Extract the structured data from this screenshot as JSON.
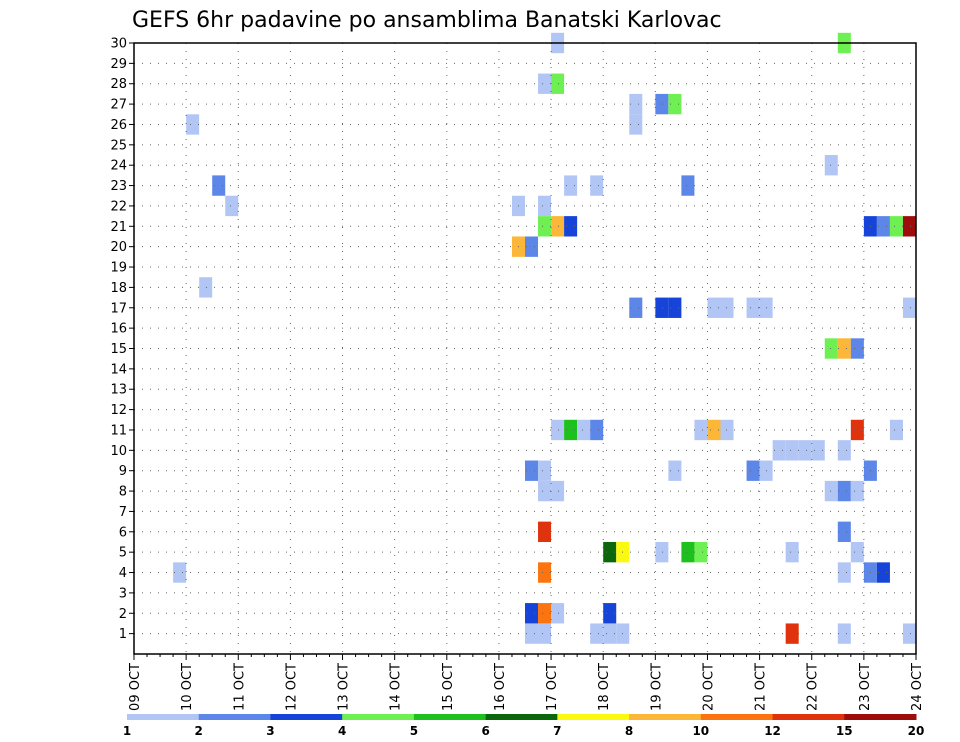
{
  "chart_data": {
    "type": "heatmap",
    "title": "GEFS 6hr padavine po ansamblima Banatski Karlovac",
    "xlabel": "",
    "ylabel": "",
    "x_tick_labels": [
      "09 OCT",
      "10 OCT",
      "11 OCT",
      "12 OCT",
      "13 OCT",
      "14 OCT",
      "15 OCT",
      "16 OCT",
      "17 OCT",
      "18 OCT",
      "19 OCT",
      "20 OCT",
      "21 OCT",
      "22 OCT",
      "23 OCT",
      "24 OCT"
    ],
    "y_tick_labels": [
      "1",
      "2",
      "3",
      "4",
      "5",
      "6",
      "7",
      "8",
      "9",
      "10",
      "11",
      "12",
      "13",
      "14",
      "15",
      "16",
      "17",
      "18",
      "19",
      "20",
      "21",
      "22",
      "23",
      "24",
      "25",
      "26",
      "27",
      "28",
      "29",
      "30"
    ],
    "x_range_days": [
      0,
      15
    ],
    "y_range": [
      0,
      30
    ],
    "x_step_days": 0.25,
    "grid": true,
    "legend_position": "bottom",
    "colorbar": {
      "labels": [
        "1",
        "2",
        "3",
        "4",
        "5",
        "6",
        "7",
        "8",
        "10",
        "12",
        "15",
        "20"
      ],
      "colors": [
        "#b2c6f6",
        "#5c86e8",
        "#1644d8",
        "#6ef052",
        "#1ec01e",
        "#0c660c",
        "#fafa10",
        "#fcb638",
        "#fc7410",
        "#e0320c",
        "#9e0c0c"
      ]
    },
    "cells": [
      {
        "member": 30,
        "day": 8.0,
        "bin": 0
      },
      {
        "member": 30,
        "day": 13.5,
        "bin": 3
      },
      {
        "member": 28,
        "day": 7.75,
        "bin": 0
      },
      {
        "member": 28,
        "day": 8.0,
        "bin": 3
      },
      {
        "member": 27,
        "day": 9.5,
        "bin": 0
      },
      {
        "member": 27,
        "day": 10.0,
        "bin": 1
      },
      {
        "member": 27,
        "day": 10.25,
        "bin": 3
      },
      {
        "member": 26,
        "day": 1.0,
        "bin": 0
      },
      {
        "member": 26,
        "day": 9.5,
        "bin": 0
      },
      {
        "member": 24,
        "day": 13.25,
        "bin": 0
      },
      {
        "member": 23,
        "day": 1.5,
        "bin": 1
      },
      {
        "member": 23,
        "day": 8.25,
        "bin": 0
      },
      {
        "member": 23,
        "day": 8.75,
        "bin": 0
      },
      {
        "member": 23,
        "day": 10.5,
        "bin": 1
      },
      {
        "member": 22,
        "day": 1.75,
        "bin": 0
      },
      {
        "member": 22,
        "day": 7.25,
        "bin": 0
      },
      {
        "member": 22,
        "day": 7.75,
        "bin": 0
      },
      {
        "member": 21,
        "day": 7.75,
        "bin": 3
      },
      {
        "member": 21,
        "day": 8.0,
        "bin": 7
      },
      {
        "member": 21,
        "day": 8.25,
        "bin": 2
      },
      {
        "member": 21,
        "day": 14.0,
        "bin": 2
      },
      {
        "member": 21,
        "day": 14.25,
        "bin": 1
      },
      {
        "member": 21,
        "day": 14.5,
        "bin": 3
      },
      {
        "member": 21,
        "day": 14.75,
        "bin": 10
      },
      {
        "member": 20,
        "day": 7.25,
        "bin": 7
      },
      {
        "member": 20,
        "day": 7.5,
        "bin": 1
      },
      {
        "member": 18,
        "day": 1.25,
        "bin": 0
      },
      {
        "member": 17,
        "day": 9.5,
        "bin": 1
      },
      {
        "member": 17,
        "day": 10.0,
        "bin": 2
      },
      {
        "member": 17,
        "day": 10.25,
        "bin": 2
      },
      {
        "member": 17,
        "day": 11.0,
        "bin": 0
      },
      {
        "member": 17,
        "day": 11.25,
        "bin": 0
      },
      {
        "member": 17,
        "day": 11.75,
        "bin": 0
      },
      {
        "member": 17,
        "day": 12.0,
        "bin": 0
      },
      {
        "member": 17,
        "day": 14.9,
        "bin": 0
      },
      {
        "member": 15,
        "day": 13.25,
        "bin": 3
      },
      {
        "member": 15,
        "day": 13.5,
        "bin": 7
      },
      {
        "member": 15,
        "day": 13.75,
        "bin": 1
      },
      {
        "member": 11,
        "day": 8.0,
        "bin": 0
      },
      {
        "member": 11,
        "day": 8.25,
        "bin": 4
      },
      {
        "member": 11,
        "day": 8.5,
        "bin": 0
      },
      {
        "member": 11,
        "day": 8.75,
        "bin": 1
      },
      {
        "member": 11,
        "day": 10.75,
        "bin": 0
      },
      {
        "member": 11,
        "day": 11.0,
        "bin": 7
      },
      {
        "member": 11,
        "day": 11.25,
        "bin": 0
      },
      {
        "member": 11,
        "day": 13.75,
        "bin": 9
      },
      {
        "member": 11,
        "day": 14.5,
        "bin": 0
      },
      {
        "member": 10,
        "day": 12.25,
        "bin": 0
      },
      {
        "member": 10,
        "day": 12.5,
        "bin": 0
      },
      {
        "member": 10,
        "day": 12.75,
        "bin": 0
      },
      {
        "member": 10,
        "day": 13.0,
        "bin": 0
      },
      {
        "member": 10,
        "day": 13.5,
        "bin": 0
      },
      {
        "member": 9,
        "day": 7.5,
        "bin": 1
      },
      {
        "member": 9,
        "day": 7.75,
        "bin": 0
      },
      {
        "member": 9,
        "day": 10.25,
        "bin": 0
      },
      {
        "member": 9,
        "day": 11.75,
        "bin": 1
      },
      {
        "member": 9,
        "day": 12.0,
        "bin": 0
      },
      {
        "member": 9,
        "day": 14.0,
        "bin": 1
      },
      {
        "member": 8,
        "day": 7.75,
        "bin": 0
      },
      {
        "member": 8,
        "day": 8.0,
        "bin": 0
      },
      {
        "member": 8,
        "day": 13.25,
        "bin": 0
      },
      {
        "member": 8,
        "day": 13.5,
        "bin": 1
      },
      {
        "member": 8,
        "day": 13.75,
        "bin": 0
      },
      {
        "member": 6,
        "day": 7.75,
        "bin": 9
      },
      {
        "member": 6,
        "day": 13.5,
        "bin": 1
      },
      {
        "member": 5,
        "day": 9.0,
        "bin": 5
      },
      {
        "member": 5,
        "day": 9.25,
        "bin": 6
      },
      {
        "member": 5,
        "day": 10.0,
        "bin": 0
      },
      {
        "member": 5,
        "day": 10.5,
        "bin": 4
      },
      {
        "member": 5,
        "day": 10.75,
        "bin": 3
      },
      {
        "member": 5,
        "day": 12.5,
        "bin": 0
      },
      {
        "member": 5,
        "day": 13.75,
        "bin": 0
      },
      {
        "member": 4,
        "day": 0.75,
        "bin": 0
      },
      {
        "member": 4,
        "day": 7.75,
        "bin": 8
      },
      {
        "member": 4,
        "day": 13.5,
        "bin": 0
      },
      {
        "member": 4,
        "day": 14.0,
        "bin": 1
      },
      {
        "member": 4,
        "day": 14.25,
        "bin": 2
      },
      {
        "member": 2,
        "day": 7.5,
        "bin": 2
      },
      {
        "member": 2,
        "day": 7.75,
        "bin": 8
      },
      {
        "member": 2,
        "day": 8.0,
        "bin": 0
      },
      {
        "member": 2,
        "day": 9.0,
        "bin": 2
      },
      {
        "member": 1,
        "day": 7.5,
        "bin": 0
      },
      {
        "member": 1,
        "day": 7.75,
        "bin": 0
      },
      {
        "member": 1,
        "day": 8.75,
        "bin": 0
      },
      {
        "member": 1,
        "day": 9.0,
        "bin": 0
      },
      {
        "member": 1,
        "day": 9.25,
        "bin": 0
      },
      {
        "member": 1,
        "day": 12.5,
        "bin": 9
      },
      {
        "member": 1,
        "day": 13.5,
        "bin": 0
      },
      {
        "member": 1,
        "day": 14.9,
        "bin": 0
      }
    ]
  }
}
